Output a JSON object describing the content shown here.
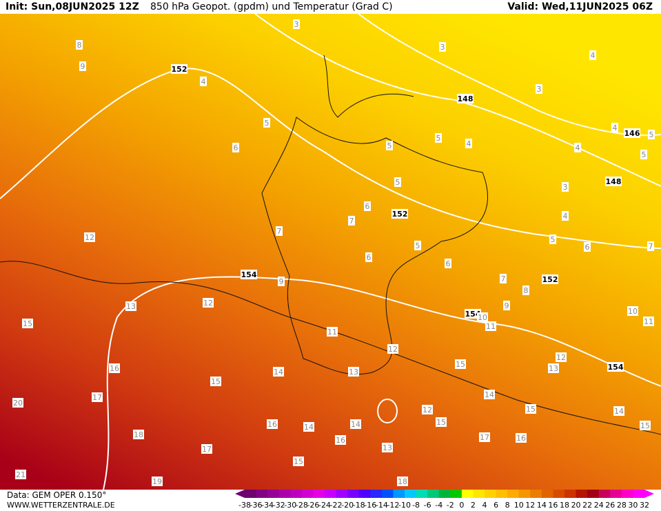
{
  "header": {
    "init": "Init: Sun,08JUN2025 12Z",
    "title": "850 hPa Geopot. (gpdm) und Temperatur (Grad C)",
    "valid": "Valid: Wed,11JUN2025 06Z"
  },
  "footer": {
    "data": "Data: GEM OPER 0.150°",
    "site": "WWW.WETTERZENTRALE.DE"
  },
  "colorbar": {
    "ticks": [
      -38,
      -36,
      -34,
      -32,
      -30,
      -28,
      -26,
      -24,
      -22,
      -20,
      -18,
      -16,
      -14,
      -12,
      -10,
      -8,
      -6,
      -4,
      -2,
      0,
      2,
      4,
      6,
      8,
      10,
      12,
      14,
      16,
      18,
      20,
      22,
      24,
      26,
      28,
      30,
      32
    ],
    "colors": [
      "#6e006e",
      "#820082",
      "#960096",
      "#aa00aa",
      "#be00be",
      "#d200d2",
      "#e600e6",
      "#c800ff",
      "#a000ff",
      "#7800ff",
      "#5000ff",
      "#2828ff",
      "#0050ff",
      "#0096ff",
      "#00c8ff",
      "#00dcb4",
      "#00c878",
      "#00b43c",
      "#00c800",
      "#ffff00",
      "#ffe600",
      "#ffd200",
      "#ffbe00",
      "#ffaa00",
      "#f59600",
      "#eb7d00",
      "#e16400",
      "#d74b00",
      "#cd3200",
      "#b41400",
      "#a00014",
      "#c8005a",
      "#e60096",
      "#ff00c8",
      "#ff00ff"
    ]
  },
  "contour_labels": [
    "3",
    "8",
    "3",
    "9",
    "4",
    "152",
    "4",
    "3",
    "148",
    "5",
    "4",
    "146",
    "5",
    "5",
    "5",
    "4",
    "6",
    "4",
    "5",
    "5",
    "3",
    "148",
    "6",
    "152",
    "4",
    "7",
    "7",
    "12",
    "5",
    "5",
    "6",
    "7",
    "6",
    "6",
    "154",
    "9",
    "7",
    "152",
    "8",
    "12",
    "13",
    "9",
    "154",
    "10",
    "10",
    "15",
    "11",
    "11",
    "11",
    "12",
    "12",
    "15",
    "13",
    "154",
    "16",
    "14",
    "13",
    "15",
    "14",
    "17",
    "20",
    "15",
    "12",
    "14",
    "14",
    "14",
    "16",
    "15",
    "15",
    "18",
    "16",
    "17",
    "16",
    "13",
    "17",
    "15",
    "21",
    "19",
    "18"
  ]
}
